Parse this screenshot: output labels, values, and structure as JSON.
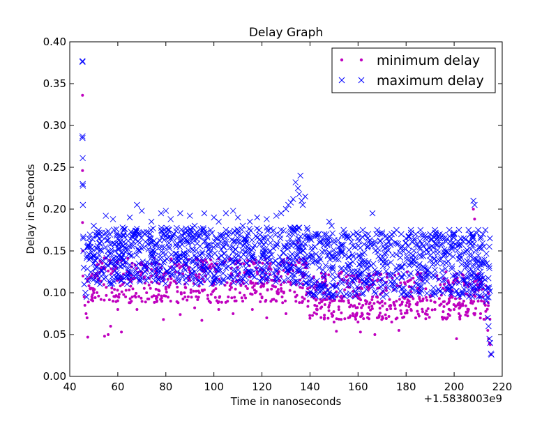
{
  "chart_data": {
    "type": "scatter",
    "title": "Delay Graph",
    "xlabel": "Time in nanoseconds",
    "ylabel": "Delay in Seconds",
    "x_offset_label": "+1.5838003e9",
    "xlim": [
      40,
      220
    ],
    "ylim": [
      0.0,
      0.4
    ],
    "x_ticks": [
      "40",
      "60",
      "80",
      "100",
      "120",
      "140",
      "160",
      "180",
      "200",
      "220"
    ],
    "y_ticks": [
      "0.00",
      "0.05",
      "0.10",
      "0.15",
      "0.20",
      "0.25",
      "0.30",
      "0.35",
      "0.40"
    ],
    "legend_position": "top-right",
    "grid": false,
    "series": [
      {
        "name": "minimum delay",
        "marker": "dot",
        "color": "#bf00bf",
        "points": [
          [
            45.3,
            0.336
          ],
          [
            45.3,
            0.246
          ],
          [
            45.3,
            0.184
          ],
          [
            45.4,
            0.15
          ],
          [
            45.5,
            0.12
          ],
          [
            46.0,
            0.095
          ],
          [
            46.3,
            0.085
          ],
          [
            46.8,
            0.075
          ],
          [
            47.2,
            0.07
          ],
          [
            47.5,
            0.047
          ],
          [
            48.5,
            0.105
          ],
          [
            50.0,
            0.1
          ],
          [
            52.0,
            0.096
          ],
          [
            53.0,
            0.092
          ],
          [
            54.5,
            0.048
          ],
          [
            56.0,
            0.05
          ],
          [
            57.0,
            0.06
          ],
          [
            58.0,
            0.09
          ],
          [
            60.0,
            0.08
          ],
          [
            61.5,
            0.053
          ],
          [
            62.0,
            0.11
          ],
          [
            64.0,
            0.125
          ],
          [
            66.0,
            0.095
          ],
          [
            68.0,
            0.08
          ],
          [
            70.0,
            0.135
          ],
          [
            72.0,
            0.1
          ],
          [
            74.0,
            0.12
          ],
          [
            76.0,
            0.093
          ],
          [
            78.0,
            0.13
          ],
          [
            79.0,
            0.068
          ],
          [
            80.0,
            0.105
          ],
          [
            82.0,
            0.09
          ],
          [
            84.0,
            0.125
          ],
          [
            86.0,
            0.074
          ],
          [
            88.0,
            0.095
          ],
          [
            90.0,
            0.115
          ],
          [
            92.0,
            0.082
          ],
          [
            94.0,
            0.1
          ],
          [
            95.0,
            0.067
          ],
          [
            96.0,
            0.125
          ],
          [
            98.0,
            0.09
          ],
          [
            100.0,
            0.11
          ],
          [
            102.0,
            0.08
          ],
          [
            104.0,
            0.135
          ],
          [
            106.0,
            0.095
          ],
          [
            108.0,
            0.075
          ],
          [
            110.0,
            0.12
          ],
          [
            112.0,
            0.09
          ],
          [
            114.0,
            0.105
          ],
          [
            116.0,
            0.08
          ],
          [
            118.0,
            0.125
          ],
          [
            120.0,
            0.095
          ],
          [
            122.0,
            0.07
          ],
          [
            124.0,
            0.115
          ],
          [
            126.0,
            0.09
          ],
          [
            128.0,
            0.105
          ],
          [
            130.0,
            0.075
          ],
          [
            131.0,
            0.135
          ],
          [
            132.0,
            0.11
          ],
          [
            134.0,
            0.095
          ],
          [
            135.0,
            0.16
          ],
          [
            136.0,
            0.14
          ],
          [
            137.0,
            0.12
          ],
          [
            138.0,
            0.13
          ],
          [
            139.0,
            0.105
          ],
          [
            141.0,
            0.095
          ],
          [
            142.0,
            0.085
          ],
          [
            143.0,
            0.08
          ],
          [
            145.0,
            0.09
          ],
          [
            146.0,
            0.07
          ],
          [
            148.0,
            0.085
          ],
          [
            149.0,
            0.075
          ],
          [
            150.0,
            0.065
          ],
          [
            151.0,
            0.054
          ],
          [
            152.0,
            0.08
          ],
          [
            154.0,
            0.09
          ],
          [
            156.0,
            0.07
          ],
          [
            158.0,
            0.095
          ],
          [
            160.0,
            0.065
          ],
          [
            161.0,
            0.053
          ],
          [
            162.0,
            0.085
          ],
          [
            164.0,
            0.075
          ],
          [
            166.0,
            0.095
          ],
          [
            167.0,
            0.05
          ],
          [
            168.0,
            0.07
          ],
          [
            170.0,
            0.09
          ],
          [
            172.0,
            0.08
          ],
          [
            174.0,
            0.065
          ],
          [
            176.0,
            0.09
          ],
          [
            177.0,
            0.055
          ],
          [
            178.0,
            0.075
          ],
          [
            180.0,
            0.095
          ],
          [
            182.0,
            0.08
          ],
          [
            184.0,
            0.07
          ],
          [
            186.0,
            0.09
          ],
          [
            188.0,
            0.075
          ],
          [
            190.0,
            0.095
          ],
          [
            192.0,
            0.08
          ],
          [
            194.0,
            0.085
          ],
          [
            196.0,
            0.07
          ],
          [
            198.0,
            0.09
          ],
          [
            200.0,
            0.08
          ],
          [
            201.0,
            0.045
          ],
          [
            202.0,
            0.075
          ],
          [
            204.0,
            0.09
          ],
          [
            206.0,
            0.08
          ],
          [
            208.0,
            0.2
          ],
          [
            208.5,
            0.188
          ],
          [
            210.0,
            0.09
          ],
          [
            211.0,
            0.075
          ],
          [
            212.0,
            0.095
          ],
          [
            213.0,
            0.085
          ],
          [
            213.5,
            0.07
          ],
          [
            214.0,
            0.055
          ],
          [
            214.3,
            0.045
          ],
          [
            214.7,
            0.04
          ],
          [
            215.0,
            0.038
          ],
          [
            215.3,
            0.026
          ]
        ]
      },
      {
        "name": "maximum delay",
        "marker": "x",
        "color": "#0000ff",
        "points": [
          [
            45.3,
            0.377
          ],
          [
            45.3,
            0.376
          ],
          [
            45.3,
            0.287
          ],
          [
            45.3,
            0.285
          ],
          [
            45.4,
            0.261
          ],
          [
            45.4,
            0.23
          ],
          [
            45.5,
            0.228
          ],
          [
            45.5,
            0.205
          ],
          [
            45.6,
            0.167
          ],
          [
            45.6,
            0.165
          ],
          [
            45.7,
            0.15
          ],
          [
            45.8,
            0.13
          ],
          [
            46.0,
            0.11
          ],
          [
            46.5,
            0.1
          ],
          [
            47.0,
            0.095
          ],
          [
            48.0,
            0.165
          ],
          [
            50.0,
            0.18
          ],
          [
            52.0,
            0.175
          ],
          [
            55.0,
            0.192
          ],
          [
            58.0,
            0.188
          ],
          [
            62.0,
            0.178
          ],
          [
            65.0,
            0.19
          ],
          [
            68.0,
            0.205
          ],
          [
            70.0,
            0.198
          ],
          [
            74.0,
            0.185
          ],
          [
            78.0,
            0.195
          ],
          [
            80.0,
            0.198
          ],
          [
            82.0,
            0.188
          ],
          [
            86.0,
            0.195
          ],
          [
            90.0,
            0.192
          ],
          [
            92.0,
            0.18
          ],
          [
            96.0,
            0.195
          ],
          [
            100.0,
            0.19
          ],
          [
            102.0,
            0.185
          ],
          [
            105.0,
            0.195
          ],
          [
            108.0,
            0.198
          ],
          [
            110.0,
            0.19
          ],
          [
            112.0,
            0.18
          ],
          [
            115.0,
            0.185
          ],
          [
            118.0,
            0.19
          ],
          [
            122.0,
            0.188
          ],
          [
            126.0,
            0.192
          ],
          [
            128.0,
            0.195
          ],
          [
            130.0,
            0.2
          ],
          [
            131.0,
            0.205
          ],
          [
            132.0,
            0.208
          ],
          [
            133.0,
            0.212
          ],
          [
            134.0,
            0.232
          ],
          [
            135.0,
            0.225
          ],
          [
            135.5,
            0.218
          ],
          [
            136.0,
            0.24
          ],
          [
            136.5,
            0.21
          ],
          [
            137.0,
            0.205
          ],
          [
            138.0,
            0.215
          ],
          [
            139.0,
            0.175
          ],
          [
            140.0,
            0.165
          ],
          [
            142.0,
            0.155
          ],
          [
            144.0,
            0.16
          ],
          [
            146.0,
            0.17
          ],
          [
            148.0,
            0.185
          ],
          [
            149.0,
            0.18
          ],
          [
            150.0,
            0.16
          ],
          [
            152.0,
            0.155
          ],
          [
            154.0,
            0.175
          ],
          [
            156.0,
            0.165
          ],
          [
            158.0,
            0.17
          ],
          [
            160.0,
            0.165
          ],
          [
            162.0,
            0.175
          ],
          [
            164.0,
            0.165
          ],
          [
            166.0,
            0.195
          ],
          [
            168.0,
            0.175
          ],
          [
            170.0,
            0.17
          ],
          [
            172.0,
            0.165
          ],
          [
            174.0,
            0.17
          ],
          [
            176.0,
            0.175
          ],
          [
            178.0,
            0.17
          ],
          [
            180.0,
            0.165
          ],
          [
            182.0,
            0.175
          ],
          [
            184.0,
            0.17
          ],
          [
            186.0,
            0.175
          ],
          [
            188.0,
            0.165
          ],
          [
            190.0,
            0.17
          ],
          [
            192.0,
            0.175
          ],
          [
            194.0,
            0.17
          ],
          [
            196.0,
            0.165
          ],
          [
            198.0,
            0.175
          ],
          [
            200.0,
            0.17
          ],
          [
            202.0,
            0.175
          ],
          [
            204.0,
            0.165
          ],
          [
            206.0,
            0.175
          ],
          [
            208.0,
            0.21
          ],
          [
            208.5,
            0.205
          ],
          [
            210.0,
            0.175
          ],
          [
            211.0,
            0.165
          ],
          [
            212.0,
            0.17
          ],
          [
            213.0,
            0.175
          ],
          [
            213.5,
            0.09
          ],
          [
            214.0,
            0.07
          ],
          [
            214.3,
            0.06
          ],
          [
            214.7,
            0.045
          ],
          [
            215.0,
            0.04
          ],
          [
            215.3,
            0.027
          ],
          [
            215.5,
            0.026
          ]
        ],
        "dense_band": [
          [
            48,
            0.11,
            0.18
          ],
          [
            140,
            0.09,
            0.185
          ],
          [
            213,
            0.1,
            0.18
          ]
        ]
      }
    ]
  }
}
